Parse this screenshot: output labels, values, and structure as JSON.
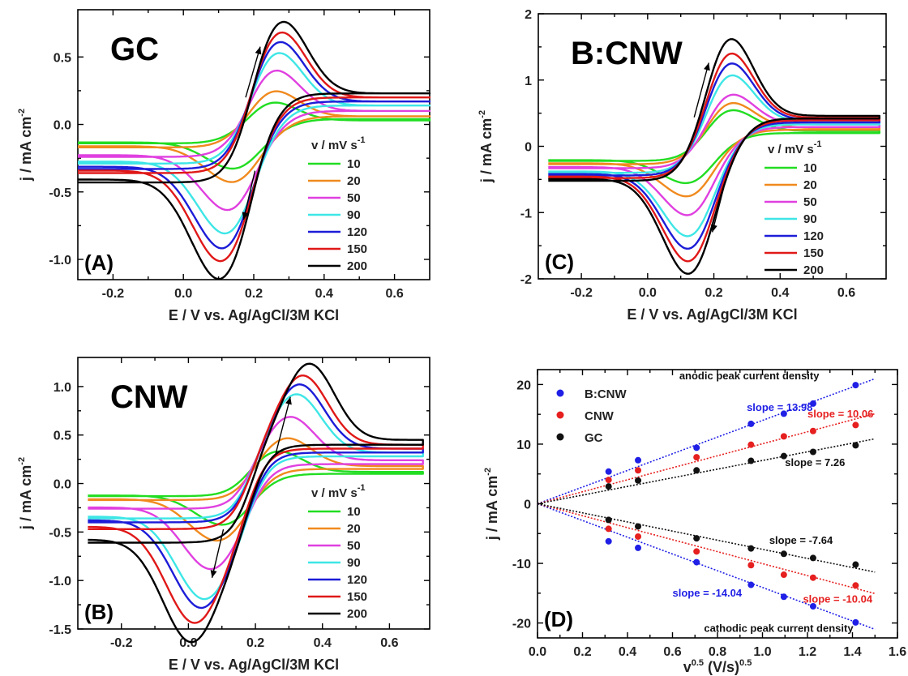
{
  "chart_data": [
    {
      "type": "line",
      "panel_id": "A",
      "title": "GC",
      "panel_label": "(A)",
      "xlabel": "E / V vs. Ag/AgCl/3M KCl",
      "ylabel": "j / mA cm",
      "ylabel_sup": "-2",
      "xlim": [
        -0.3,
        0.7
      ],
      "ylim": [
        -1.15,
        0.85
      ],
      "xticks": [
        "-0.2",
        "0.0",
        "0.2",
        "0.4",
        "0.6"
      ],
      "yticks": [
        "-1.0",
        "-0.5",
        "0.0",
        "0.5"
      ],
      "legend_title": "v / mV s",
      "legend_title_sup": "-1",
      "legend_position": "right",
      "scan_direction_arrows": true,
      "series": [
        {
          "name": "10",
          "color": "#22dd22",
          "ipa": 0.19,
          "ipc": -0.29,
          "epa": 0.24,
          "epc": 0.16,
          "j_start": -0.14,
          "j_end": 0.03,
          "j_back": 0.04
        },
        {
          "name": "20",
          "color": "#f08a1e",
          "ipa": 0.28,
          "ipc": -0.38,
          "epa": 0.245,
          "epc": 0.155,
          "j_start": -0.17,
          "j_end": 0.06,
          "j_back": 0.06
        },
        {
          "name": "50",
          "color": "#e040e0",
          "ipa": 0.44,
          "ipc": -0.56,
          "epa": 0.25,
          "epc": 0.14,
          "j_start": -0.24,
          "j_end": 0.1,
          "j_back": 0.1
        },
        {
          "name": "90",
          "color": "#3ee6e6",
          "ipa": 0.57,
          "ipc": -0.71,
          "epa": 0.26,
          "epc": 0.13,
          "j_start": -0.29,
          "j_end": 0.14,
          "j_back": 0.14
        },
        {
          "name": "120",
          "color": "#1c1cd8",
          "ipa": 0.65,
          "ipc": -0.8,
          "epa": 0.265,
          "epc": 0.12,
          "j_start": -0.33,
          "j_end": 0.17,
          "j_back": 0.17
        },
        {
          "name": "150",
          "color": "#e01818",
          "ipa": 0.72,
          "ipc": -0.88,
          "epa": 0.27,
          "epc": 0.115,
          "j_start": -0.36,
          "j_end": 0.2,
          "j_back": 0.2
        },
        {
          "name": "200",
          "color": "#000000",
          "ipa": 0.8,
          "ipc": -0.98,
          "epa": 0.275,
          "epc": 0.11,
          "j_start": -0.43,
          "j_end": 0.23,
          "j_back": 0.23
        }
      ]
    },
    {
      "type": "line",
      "panel_id": "C",
      "title": "B:CNW",
      "panel_label": "(C)",
      "xlabel": "E / V vs. Ag/AgCl/3M KCl",
      "ylabel": "j / mA cm",
      "ylabel_sup": "-2",
      "xlim": [
        -0.33,
        0.72
      ],
      "ylim": [
        -2.0,
        2.0
      ],
      "xticks": [
        "-0.2",
        "0.0",
        "0.2",
        "0.4",
        "0.6"
      ],
      "yticks": [
        "-2",
        "-1",
        "0",
        "1",
        "2"
      ],
      "legend_title": "v / mV s",
      "legend_title_sup": "-1",
      "legend_position": "right",
      "scan_direction_arrows": true,
      "series": [
        {
          "name": "10",
          "color": "#22dd22",
          "ipa": 0.6,
          "ipc": -0.5,
          "epa": 0.24,
          "epc": 0.135,
          "j_start": -0.22,
          "j_end": 0.23,
          "j_back": 0.2
        },
        {
          "name": "20",
          "color": "#f08a1e",
          "ipa": 0.72,
          "ipc": -0.69,
          "epa": 0.24,
          "epc": 0.135,
          "j_start": -0.27,
          "j_end": 0.28,
          "j_back": 0.25
        },
        {
          "name": "50",
          "color": "#e040e0",
          "ipa": 0.86,
          "ipc": -0.96,
          "epa": 0.24,
          "epc": 0.135,
          "j_start": -0.33,
          "j_end": 0.33,
          "j_back": 0.29
        },
        {
          "name": "90",
          "color": "#3ee6e6",
          "ipa": 1.17,
          "ipc": -1.26,
          "epa": 0.24,
          "epc": 0.135,
          "j_start": -0.4,
          "j_end": 0.37,
          "j_back": 0.33
        },
        {
          "name": "120",
          "color": "#1c1cd8",
          "ipa": 1.36,
          "ipc": -1.44,
          "epa": 0.24,
          "epc": 0.135,
          "j_start": -0.44,
          "j_end": 0.4,
          "j_back": 0.36
        },
        {
          "name": "150",
          "color": "#e01818",
          "ipa": 1.52,
          "ipc": -1.62,
          "epa": 0.24,
          "epc": 0.135,
          "j_start": -0.48,
          "j_end": 0.43,
          "j_back": 0.39
        },
        {
          "name": "200",
          "color": "#000000",
          "ipa": 1.75,
          "ipc": -1.8,
          "epa": 0.24,
          "epc": 0.135,
          "j_start": -0.52,
          "j_end": 0.46,
          "j_back": 0.42
        }
      ]
    },
    {
      "type": "line",
      "panel_id": "B",
      "title": "CNW",
      "panel_label": "(B)",
      "xlabel": "E / V vs. Ag/AgCl/3M KCl",
      "ylabel": "j / mA cm",
      "ylabel_sup": "-2",
      "xlim": [
        -0.33,
        0.72
      ],
      "ylim": [
        -1.5,
        1.3
      ],
      "xticks": [
        "-0.2",
        "0.0",
        "0.2",
        "0.4",
        "0.6"
      ],
      "yticks": [
        "-1.5",
        "-1.0",
        "-0.5",
        "0.0",
        "0.5",
        "1.0"
      ],
      "legend_title": "v / mV s",
      "legend_title_sup": "-1",
      "legend_position": "right",
      "scan_direction_arrows": true,
      "series": [
        {
          "name": "10",
          "color": "#22dd22",
          "ipa": 0.35,
          "ipc": -0.38,
          "epa": 0.26,
          "epc": 0.11,
          "j_start": -0.13,
          "j_end": 0.12,
          "j_back": 0.1
        },
        {
          "name": "20",
          "color": "#f08a1e",
          "ipa": 0.48,
          "ipc": -0.52,
          "epa": 0.29,
          "epc": 0.09,
          "j_start": -0.17,
          "j_end": 0.18,
          "j_back": 0.15
        },
        {
          "name": "50",
          "color": "#e040e0",
          "ipa": 0.7,
          "ipc": -0.77,
          "epa": 0.3,
          "epc": 0.07,
          "j_start": -0.26,
          "j_end": 0.24,
          "j_back": 0.2
        },
        {
          "name": "90",
          "color": "#3ee6e6",
          "ipa": 0.93,
          "ipc": -1.03,
          "epa": 0.32,
          "epc": 0.05,
          "j_start": -0.36,
          "j_end": 0.32,
          "j_back": 0.28
        },
        {
          "name": "120",
          "color": "#1c1cd8",
          "ipa": 1.03,
          "ipc": -1.1,
          "epa": 0.33,
          "epc": 0.04,
          "j_start": -0.4,
          "j_end": 0.36,
          "j_back": 0.32
        },
        {
          "name": "150",
          "color": "#e01818",
          "ipa": 1.12,
          "ipc": -1.22,
          "epa": 0.34,
          "epc": 0.02,
          "j_start": -0.47,
          "j_end": 0.4,
          "j_back": 0.36
        },
        {
          "name": "200",
          "color": "#000000",
          "ipa": 1.24,
          "ipc": -1.35,
          "epa": 0.36,
          "epc": 0.01,
          "j_start": -0.61,
          "j_end": 0.45,
          "j_back": 0.4
        }
      ]
    },
    {
      "type": "scatter",
      "panel_id": "D",
      "panel_label": "(D)",
      "xlabel": "v",
      "xlabel_sup": "0.5",
      "xlabel_mid": " (V/s)",
      "xlabel_sup2": "0.5",
      "ylabel": "j / mA cm",
      "ylabel_sup": "-2",
      "xlim": [
        0.0,
        1.6
      ],
      "ylim": [
        -22.5,
        22.5
      ],
      "xticks": [
        "0.0",
        "0.2",
        "0.4",
        "0.6",
        "0.8",
        "1.0",
        "1.2",
        "1.4",
        "1.6"
      ],
      "yticks": [
        "-20",
        "-10",
        "0",
        "10",
        "20"
      ],
      "legend_position": "top-left",
      "annotations": {
        "anodic_label": "anodic peak current density",
        "cathodic_label": "cathodic peak current density"
      },
      "x": [
        0.316,
        0.447,
        0.707,
        0.949,
        1.095,
        1.225,
        1.414
      ],
      "series": [
        {
          "name": "B:CNW",
          "color": "#1f1fe6",
          "anodic": [
            5.4,
            7.3,
            9.4,
            13.4,
            15.1,
            16.8,
            19.9
          ],
          "cathodic": [
            -6.3,
            -7.4,
            -9.8,
            -13.6,
            -15.6,
            -17.2,
            -19.9
          ],
          "fit_anodic_slope": 13.98,
          "fit_cathodic_slope": -14.04,
          "slope_label_anodic": "slope = 13.98",
          "slope_label_cathodic": "slope = -14.04"
        },
        {
          "name": "CNW",
          "color": "#e61f1f",
          "anodic": [
            4.0,
            5.6,
            7.8,
            9.9,
            11.3,
            12.2,
            13.2
          ],
          "cathodic": [
            -4.2,
            -5.5,
            -8.0,
            -10.3,
            -11.9,
            -12.4,
            -13.7
          ],
          "fit_anodic_slope": 10.06,
          "fit_cathodic_slope": -10.04,
          "slope_label_anodic": "slope = 10.06",
          "slope_label_cathodic": "slope = -10.04"
        },
        {
          "name": "GC",
          "color": "#111111",
          "anodic": [
            2.9,
            3.9,
            5.6,
            7.2,
            8.0,
            8.7,
            9.8
          ],
          "cathodic": [
            -2.7,
            -3.8,
            -5.8,
            -7.5,
            -8.4,
            -9.1,
            -10.2
          ],
          "fit_anodic_slope": 7.26,
          "fit_cathodic_slope": -7.64,
          "slope_label_anodic": "slope = 7.26",
          "slope_label_cathodic": "slope = -7.64"
        }
      ]
    }
  ]
}
